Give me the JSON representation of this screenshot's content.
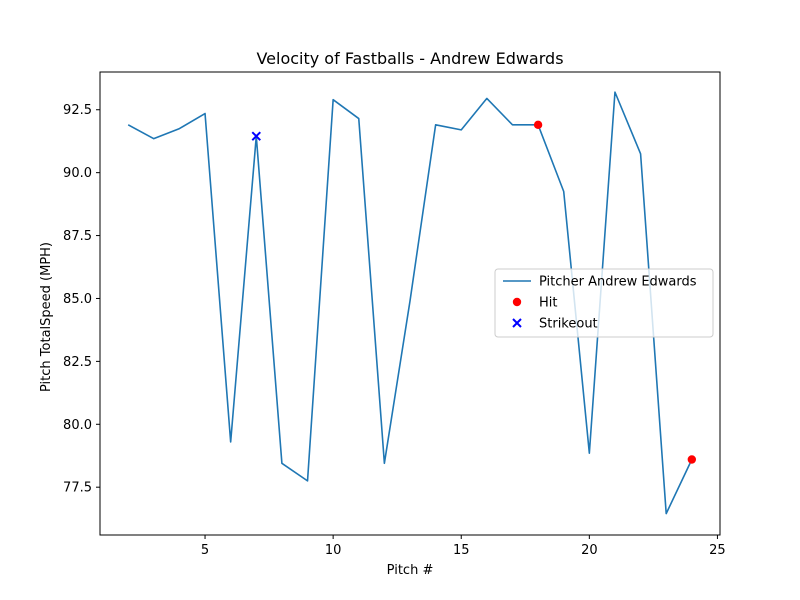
{
  "chart_data": {
    "type": "line",
    "title": "Velocity of Fastballs - Andrew Edwards",
    "xlabel": "Pitch #",
    "ylabel": "Pitch TotalSpeed (MPH)",
    "xlim": [
      0.9,
      25.1
    ],
    "ylim": [
      75.6,
      94.0
    ],
    "xticks": [
      5,
      10,
      15,
      20,
      25
    ],
    "yticks": [
      77.5,
      80.0,
      82.5,
      85.0,
      87.5,
      90.0,
      92.5
    ],
    "xtick_labels": [
      "5",
      "10",
      "15",
      "20",
      "25"
    ],
    "ytick_labels": [
      "77.5",
      "80.0",
      "82.5",
      "85.0",
      "87.5",
      "90.0",
      "92.5"
    ],
    "grid": false,
    "legend_position": "center-right",
    "series": [
      {
        "name": "Pitcher Andrew Edwards",
        "kind": "line",
        "color": "#1f77b4",
        "x": [
          2,
          3,
          4,
          5,
          6,
          7,
          8,
          9,
          10,
          11,
          12,
          13,
          14,
          15,
          16,
          17,
          18,
          19,
          20,
          21,
          22,
          23,
          24
        ],
        "y": [
          91.9,
          91.35,
          91.75,
          92.35,
          79.3,
          91.45,
          78.45,
          77.75,
          92.9,
          92.15,
          78.45,
          84.9,
          91.9,
          91.7,
          92.95,
          91.9,
          91.9,
          89.25,
          78.85,
          93.2,
          90.75,
          76.45,
          78.6
        ]
      },
      {
        "name": "Hit",
        "kind": "scatter",
        "marker": "circle",
        "color": "#ff0000",
        "x": [
          18,
          24
        ],
        "y": [
          91.9,
          78.6
        ]
      },
      {
        "name": "Strikeout",
        "kind": "scatter",
        "marker": "x",
        "color": "#0000ff",
        "x": [
          7
        ],
        "y": [
          91.45
        ]
      }
    ]
  }
}
